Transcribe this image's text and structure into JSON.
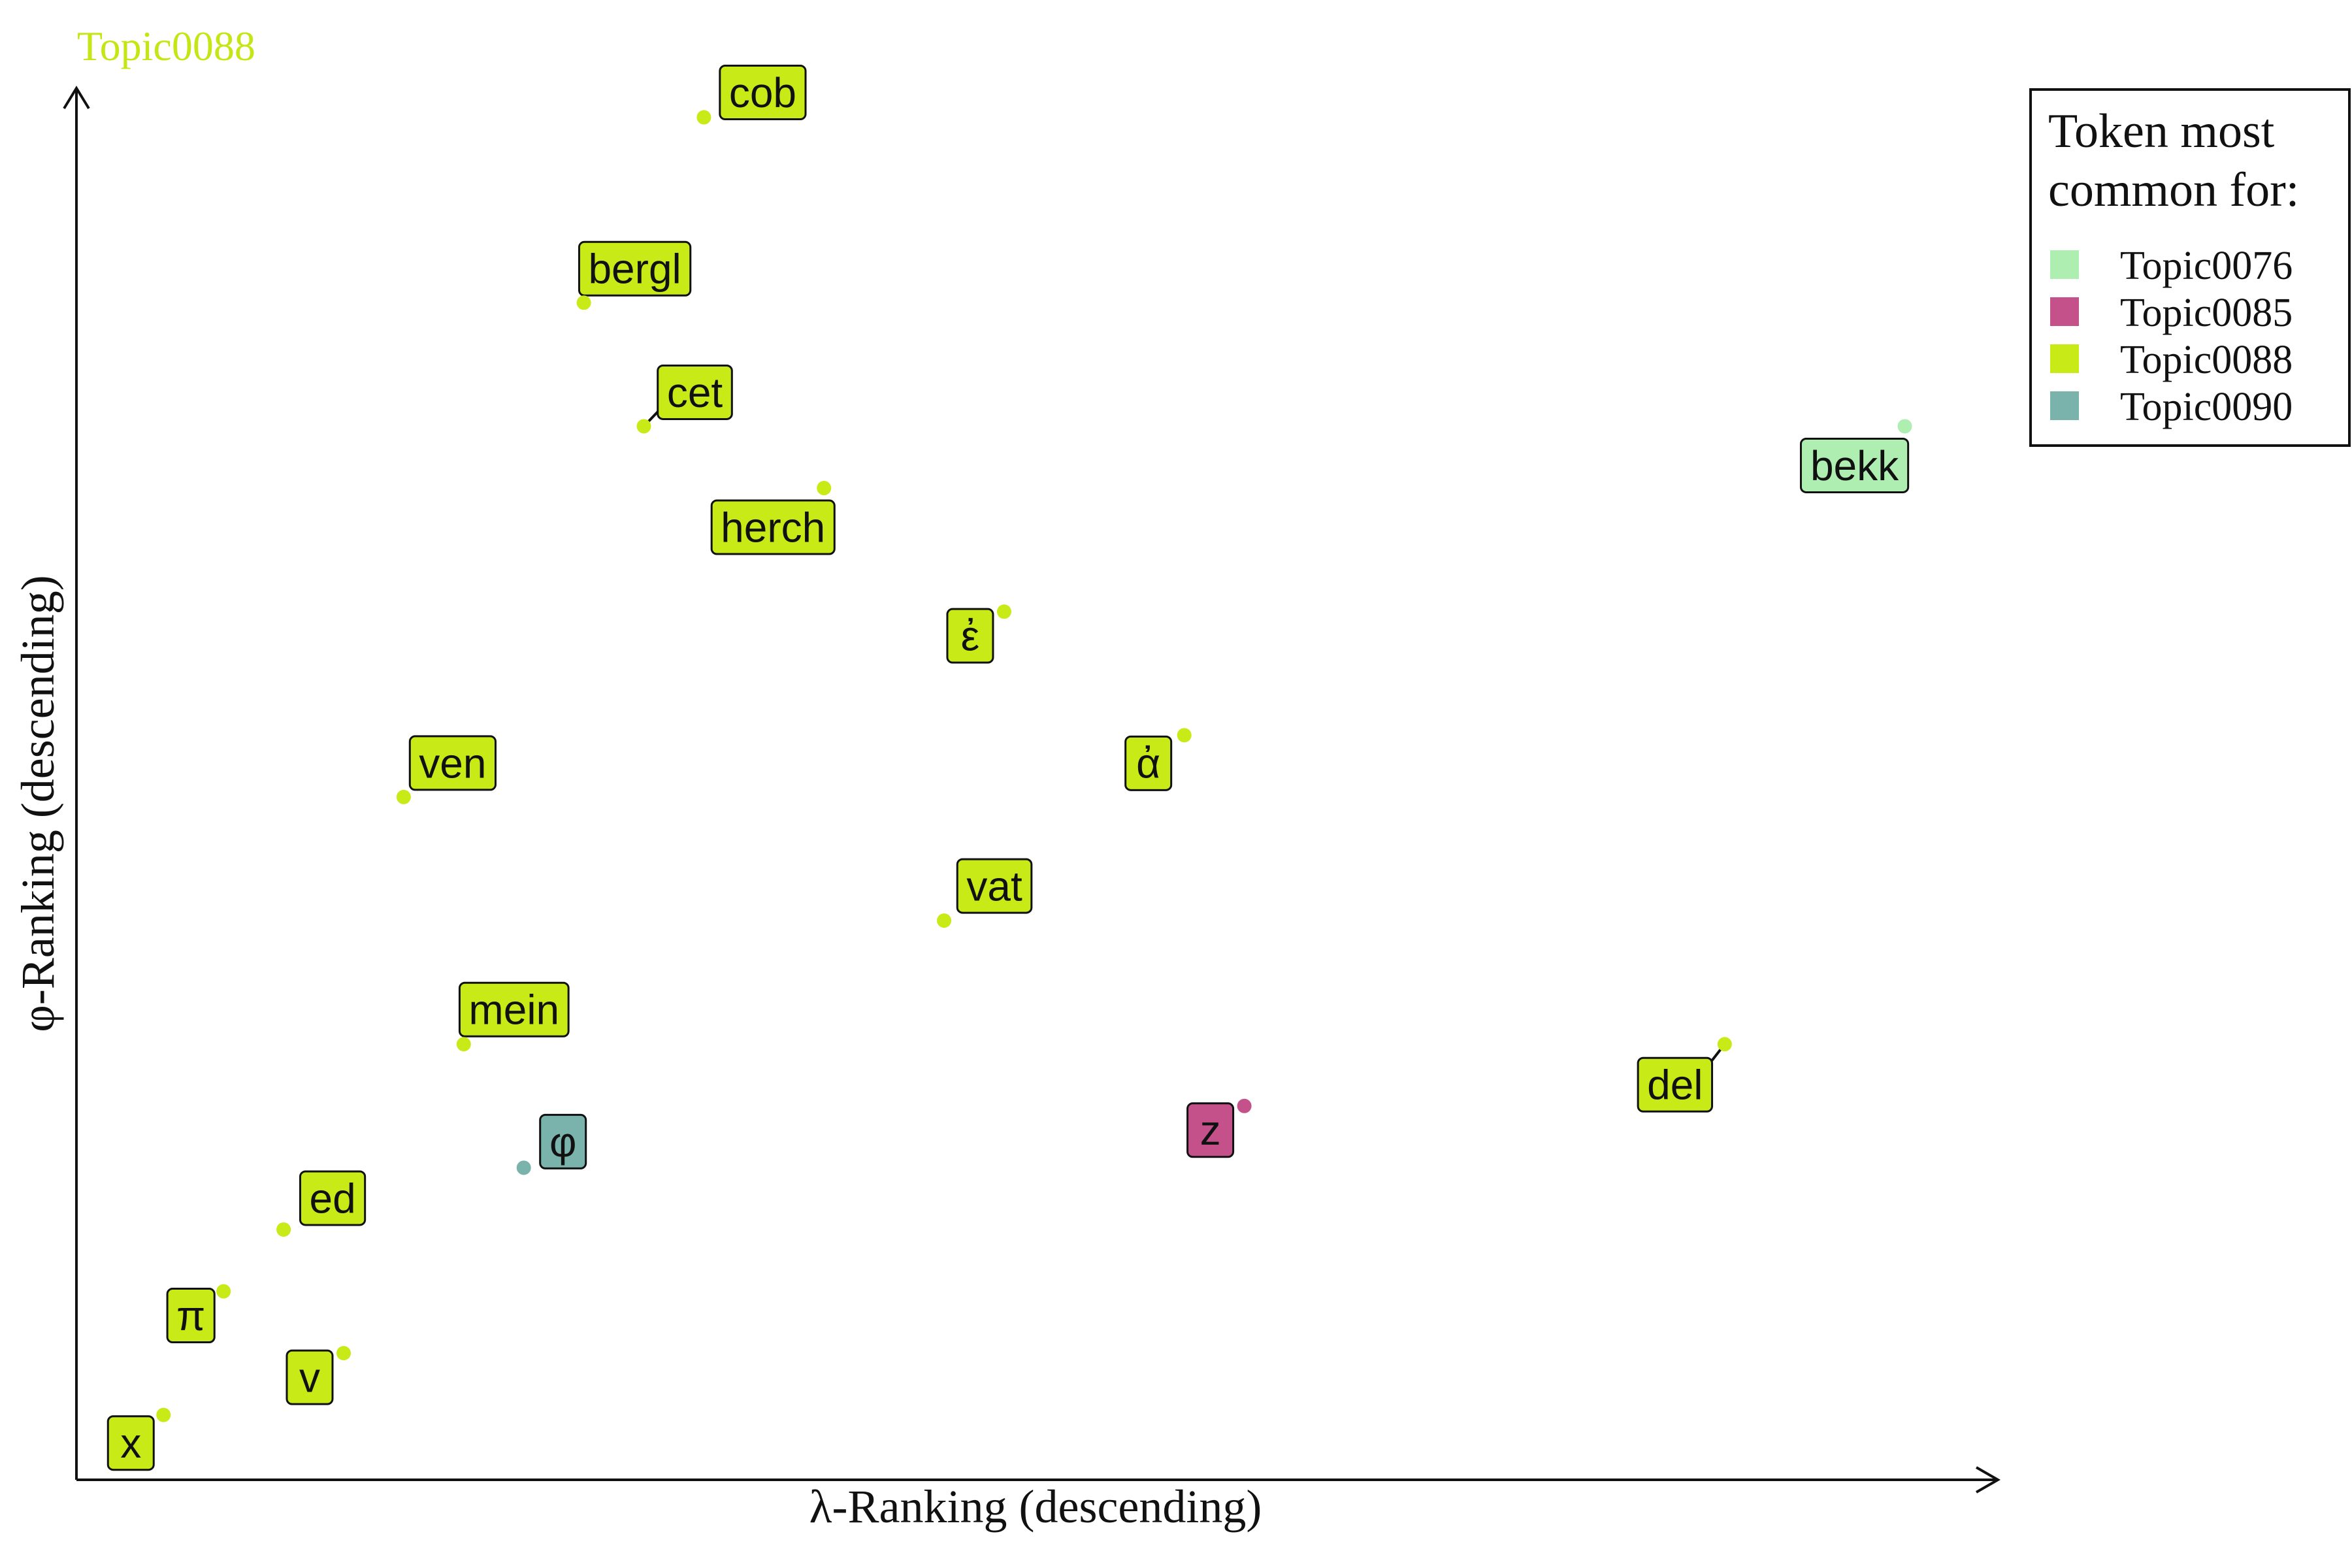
{
  "chart_data": {
    "type": "scatter",
    "title": "Topic0088",
    "title_color": "#c6e514",
    "xlabel": "λ-Ranking (descending)",
    "ylabel": "φ-Ranking (descending)",
    "xlim": [
      0,
      32
    ],
    "ylim": [
      0,
      22.5
    ],
    "axes_style": "arrows, no ticks",
    "grid": false,
    "legend": {
      "position": "top-right",
      "title": "Token most common for:",
      "entries": [
        {
          "label": "Topic0076",
          "color": "#aeeeb0"
        },
        {
          "label": "Topic0085",
          "color": "#c5518a"
        },
        {
          "label": "Topic0088",
          "color": "#c8ea16"
        },
        {
          "label": "Topic0090",
          "color": "#79b3ac"
        }
      ]
    },
    "points": [
      {
        "label": "x",
        "topic": "Topic0088",
        "x": 1.45,
        "y": 1.05
      },
      {
        "label": "π",
        "topic": "Topic0088",
        "x": 2.45,
        "y": 3.05
      },
      {
        "label": "v",
        "topic": "Topic0088",
        "x": 4.45,
        "y": 2.05
      },
      {
        "label": "ed",
        "topic": "Topic0088",
        "x": 3.45,
        "y": 4.05
      },
      {
        "label": "φ",
        "topic": "Topic0090",
        "x": 7.45,
        "y": 5.05
      },
      {
        "label": "mein",
        "topic": "Topic0088",
        "x": 6.45,
        "y": 7.05
      },
      {
        "label": "ven",
        "topic": "Topic0088",
        "x": 5.45,
        "y": 11.05
      },
      {
        "label": "vat",
        "topic": "Topic0088",
        "x": 14.45,
        "y": 9.05
      },
      {
        "label": "ἀ",
        "topic": "Topic0088",
        "x": 18.45,
        "y": 12.05
      },
      {
        "label": "ἐ",
        "topic": "Topic0088",
        "x": 15.45,
        "y": 14.05
      },
      {
        "label": "herch",
        "topic": "Topic0088",
        "x": 12.45,
        "y": 16.05
      },
      {
        "label": "cet",
        "topic": "Topic0088",
        "x": 9.45,
        "y": 17.05
      },
      {
        "label": "bergl",
        "topic": "Topic0088",
        "x": 8.45,
        "y": 19.05
      },
      {
        "label": "cob",
        "topic": "Topic0088",
        "x": 10.45,
        "y": 22.05
      },
      {
        "label": "z",
        "topic": "Topic0085",
        "x": 19.45,
        "y": 6.05
      },
      {
        "label": "del",
        "topic": "Topic0088",
        "x": 27.45,
        "y": 7.05
      },
      {
        "label": "bekk",
        "topic": "Topic0076",
        "x": 30.45,
        "y": 17.05
      }
    ]
  }
}
